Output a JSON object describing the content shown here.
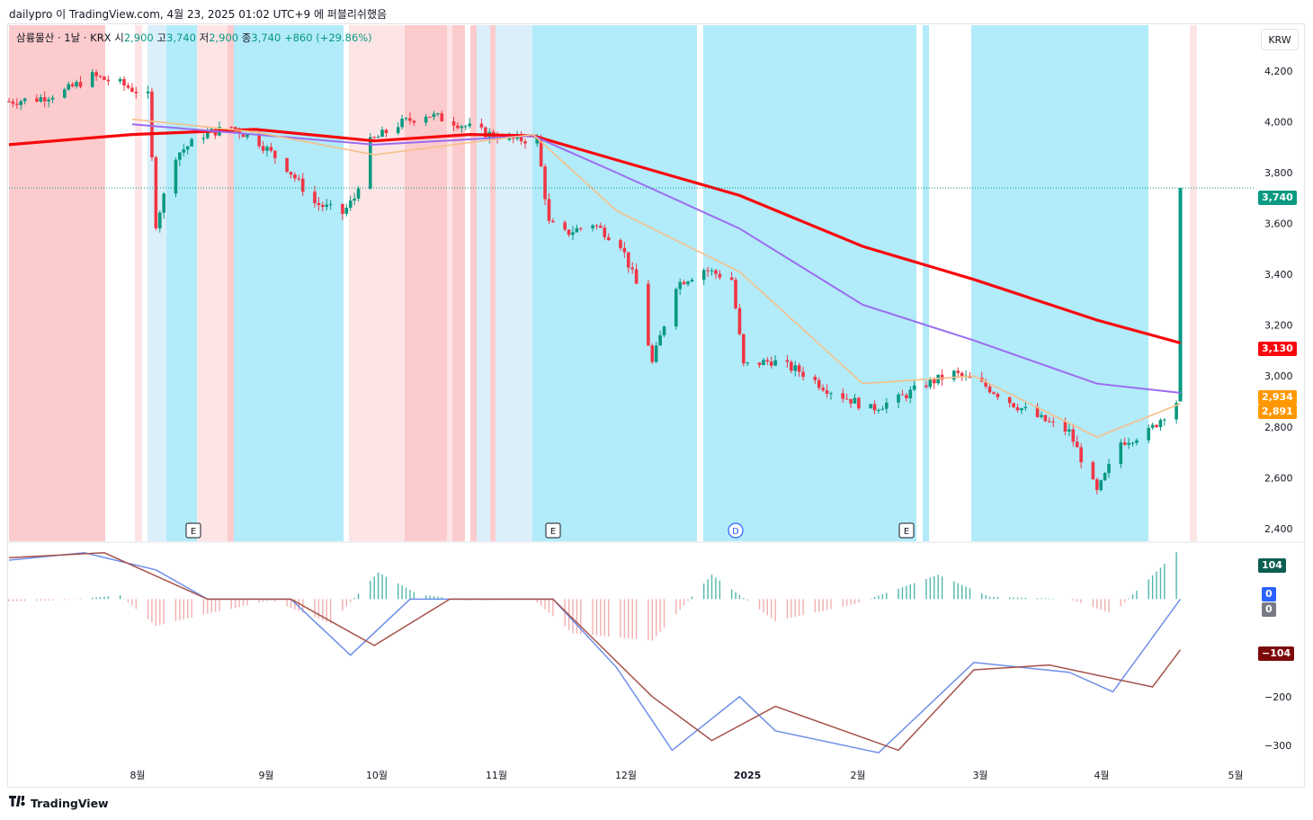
{
  "header": {
    "caption": "dailypro 이 TradingView.com, 4월 23, 2025 01:02 UTC+9 에 퍼블리쉬했음"
  },
  "legend": {
    "symbol": "삼륭물산 · 1날 · KRX",
    "open_label": "시",
    "open_value": "2,900",
    "high_label": "고",
    "high_value": "3,740",
    "low_label": "저",
    "low_value": "2,900",
    "close_label": "종",
    "close_value": "3,740",
    "change": "+860 (+29.86%)"
  },
  "currency_button": "KRW",
  "price_badges": {
    "last": "3,740",
    "ma_red": "3,130",
    "ma_purple": "2,934",
    "ma_orange": "2,891"
  },
  "macd_badges": {
    "hist": "104",
    "zero_blue": "0",
    "zero_gray": "0",
    "signal": "−104"
  },
  "brand": {
    "name": "TradingView"
  },
  "colors": {
    "up": "#089981",
    "down": "#f23645",
    "ma_red": "#f7080d",
    "ma_purple": "#9b6cf0",
    "ma_orange": "#f5c089",
    "macd_line": "#6e8fe8",
    "signal_line": "#a5514a",
    "band_red": "#fccbcd",
    "band_lightred": "#fde5e6",
    "band_cyan": "#b2ebf9",
    "band_lightblue": "#dbeffb",
    "last_badge": "#089981",
    "orange_badge": "#ff9800"
  },
  "chart_data": [
    {
      "type": "candlestick",
      "title": "삼륭물산 · 1날 · KRX",
      "x_ticks": [
        "8월",
        "9월",
        "10월",
        "11월",
        "12월",
        "2025",
        "2월",
        "3월",
        "4월",
        "5월"
      ],
      "y_ticks": [
        "4,200",
        "4,000",
        "3,800",
        "3,600",
        "3,400",
        "3,200",
        "3,000",
        "2,800",
        "2,600",
        "2,400"
      ],
      "ylim": [
        2350,
        4380
      ],
      "x_range": [
        "2024-07-01",
        "2025-05-10"
      ],
      "last_price": 3740,
      "series": [
        {
          "name": "close",
          "points": [
            [
              "2024-07-01",
              4080
            ],
            [
              "2024-07-08",
              4090
            ],
            [
              "2024-07-15",
              4120
            ],
            [
              "2024-07-22",
              4180
            ],
            [
              "2024-07-29",
              4150
            ],
            [
              "2024-08-05",
              4100
            ],
            [
              "2024-08-07",
              3600
            ],
            [
              "2024-08-12",
              3870
            ],
            [
              "2024-08-19",
              3950
            ],
            [
              "2024-08-26",
              3980
            ],
            [
              "2024-09-02",
              3920
            ],
            [
              "2024-09-09",
              3820
            ],
            [
              "2024-09-16",
              3680
            ],
            [
              "2024-09-23",
              3640
            ],
            [
              "2024-09-26",
              3700
            ],
            [
              "2024-09-30",
              3920
            ],
            [
              "2024-10-07",
              3990
            ],
            [
              "2024-10-14",
              4030
            ],
            [
              "2024-10-21",
              4000
            ],
            [
              "2024-10-28",
              3960
            ],
            [
              "2024-11-04",
              3930
            ],
            [
              "2024-11-11",
              3930
            ],
            [
              "2024-11-14",
              3600
            ],
            [
              "2024-11-18",
              3560
            ],
            [
              "2024-11-25",
              3600
            ],
            [
              "2024-12-02",
              3520
            ],
            [
              "2024-12-06",
              3360
            ],
            [
              "2024-12-10",
              3050
            ],
            [
              "2024-12-16",
              3360
            ],
            [
              "2024-12-23",
              3420
            ],
            [
              "2024-12-30",
              3380
            ],
            [
              "2025-01-02",
              3040
            ],
            [
              "2025-01-09",
              3060
            ],
            [
              "2025-01-16",
              3020
            ],
            [
              "2025-01-23",
              2950
            ],
            [
              "2025-02-03",
              2870
            ],
            [
              "2025-02-10",
              2910
            ],
            [
              "2025-02-17",
              2970
            ],
            [
              "2025-02-24",
              3010
            ],
            [
              "2025-03-04",
              2960
            ],
            [
              "2025-03-11",
              2890
            ],
            [
              "2025-03-18",
              2830
            ],
            [
              "2025-03-25",
              2780
            ],
            [
              "2025-04-01",
              2540
            ],
            [
              "2025-04-07",
              2740
            ],
            [
              "2025-04-14",
              2780
            ],
            [
              "2025-04-21",
              2900
            ],
            [
              "2025-04-22",
              3740
            ]
          ]
        },
        {
          "name": "ma_red",
          "points": [
            [
              "2024-07-01",
              3910
            ],
            [
              "2024-08-01",
              3950
            ],
            [
              "2024-09-01",
              3970
            ],
            [
              "2024-10-01",
              3925
            ],
            [
              "2024-10-25",
              3950
            ],
            [
              "2024-11-10",
              3945
            ],
            [
              "2024-12-01",
              3850
            ],
            [
              "2025-01-01",
              3710
            ],
            [
              "2025-02-01",
              3510
            ],
            [
              "2025-03-01",
              3380
            ],
            [
              "2025-04-01",
              3220
            ],
            [
              "2025-04-22",
              3130
            ]
          ]
        },
        {
          "name": "ma_purple",
          "points": [
            [
              "2024-08-01",
              3990
            ],
            [
              "2024-09-01",
              3950
            ],
            [
              "2024-10-01",
              3910
            ],
            [
              "2024-11-10",
              3945
            ],
            [
              "2024-12-01",
              3800
            ],
            [
              "2025-01-01",
              3580
            ],
            [
              "2025-02-01",
              3280
            ],
            [
              "2025-03-01",
              3140
            ],
            [
              "2025-04-01",
              2970
            ],
            [
              "2025-04-22",
              2934
            ]
          ]
        },
        {
          "name": "ma_orange",
          "points": [
            [
              "2024-08-01",
              4010
            ],
            [
              "2024-09-01",
              3960
            ],
            [
              "2024-10-01",
              3870
            ],
            [
              "2024-11-10",
              3950
            ],
            [
              "2024-12-01",
              3650
            ],
            [
              "2025-01-01",
              3410
            ],
            [
              "2025-02-01",
              2970
            ],
            [
              "2025-03-01",
              3000
            ],
            [
              "2025-04-01",
              2760
            ],
            [
              "2025-04-22",
              2891
            ]
          ]
        }
      ]
    },
    {
      "type": "bar+line",
      "title": "",
      "y_ticks": [
        "−200",
        "−300"
      ],
      "ylim": [
        -335,
        115
      ],
      "series": [
        {
          "name": "histogram",
          "points": [
            [
              "2024-07-01",
              -5
            ],
            [
              "2024-07-15",
              -2
            ],
            [
              "2024-07-29",
              8
            ],
            [
              "2024-08-07",
              -55
            ],
            [
              "2024-08-20",
              -30
            ],
            [
              "2024-09-05",
              -2
            ],
            [
              "2024-09-20",
              -50
            ],
            [
              "2024-10-02",
              55
            ],
            [
              "2024-10-12",
              10
            ],
            [
              "2024-10-25",
              -3
            ],
            [
              "2024-11-10",
              0
            ],
            [
              "2024-11-20",
              -70
            ],
            [
              "2024-12-10",
              -85
            ],
            [
              "2024-12-25",
              50
            ],
            [
              "2025-01-10",
              -45
            ],
            [
              "2025-01-30",
              -10
            ],
            [
              "2025-02-20",
              50
            ],
            [
              "2025-03-05",
              5
            ],
            [
              "2025-03-25",
              0
            ],
            [
              "2025-04-05",
              -30
            ],
            [
              "2025-04-22",
              104
            ]
          ]
        },
        {
          "name": "macd",
          "points": [
            [
              "2024-07-01",
              80
            ],
            [
              "2024-07-20",
              95
            ],
            [
              "2024-08-07",
              60
            ],
            [
              "2024-08-20",
              0
            ],
            [
              "2024-09-10",
              0
            ],
            [
              "2024-09-25",
              -115
            ],
            [
              "2024-10-10",
              0
            ],
            [
              "2024-11-15",
              0
            ],
            [
              "2024-12-01",
              -140
            ],
            [
              "2024-12-15",
              -310
            ],
            [
              "2025-01-01",
              -200
            ],
            [
              "2025-01-10",
              -270
            ],
            [
              "2025-02-05",
              -315
            ],
            [
              "2025-03-01",
              -130
            ],
            [
              "2025-03-25",
              -150
            ],
            [
              "2025-04-05",
              -190
            ],
            [
              "2025-04-22",
              0
            ]
          ]
        },
        {
          "name": "signal",
          "points": [
            [
              "2024-07-01",
              85
            ],
            [
              "2024-07-25",
              95
            ],
            [
              "2024-08-20",
              0
            ],
            [
              "2024-09-10",
              0
            ],
            [
              "2024-10-01",
              -95
            ],
            [
              "2024-10-20",
              0
            ],
            [
              "2024-11-15",
              0
            ],
            [
              "2024-12-10",
              -200
            ],
            [
              "2024-12-25",
              -290
            ],
            [
              "2025-01-10",
              -220
            ],
            [
              "2025-02-10",
              -310
            ],
            [
              "2025-03-01",
              -145
            ],
            [
              "2025-03-20",
              -135
            ],
            [
              "2025-04-15",
              -180
            ],
            [
              "2025-04-22",
              -104
            ]
          ]
        }
      ]
    }
  ]
}
